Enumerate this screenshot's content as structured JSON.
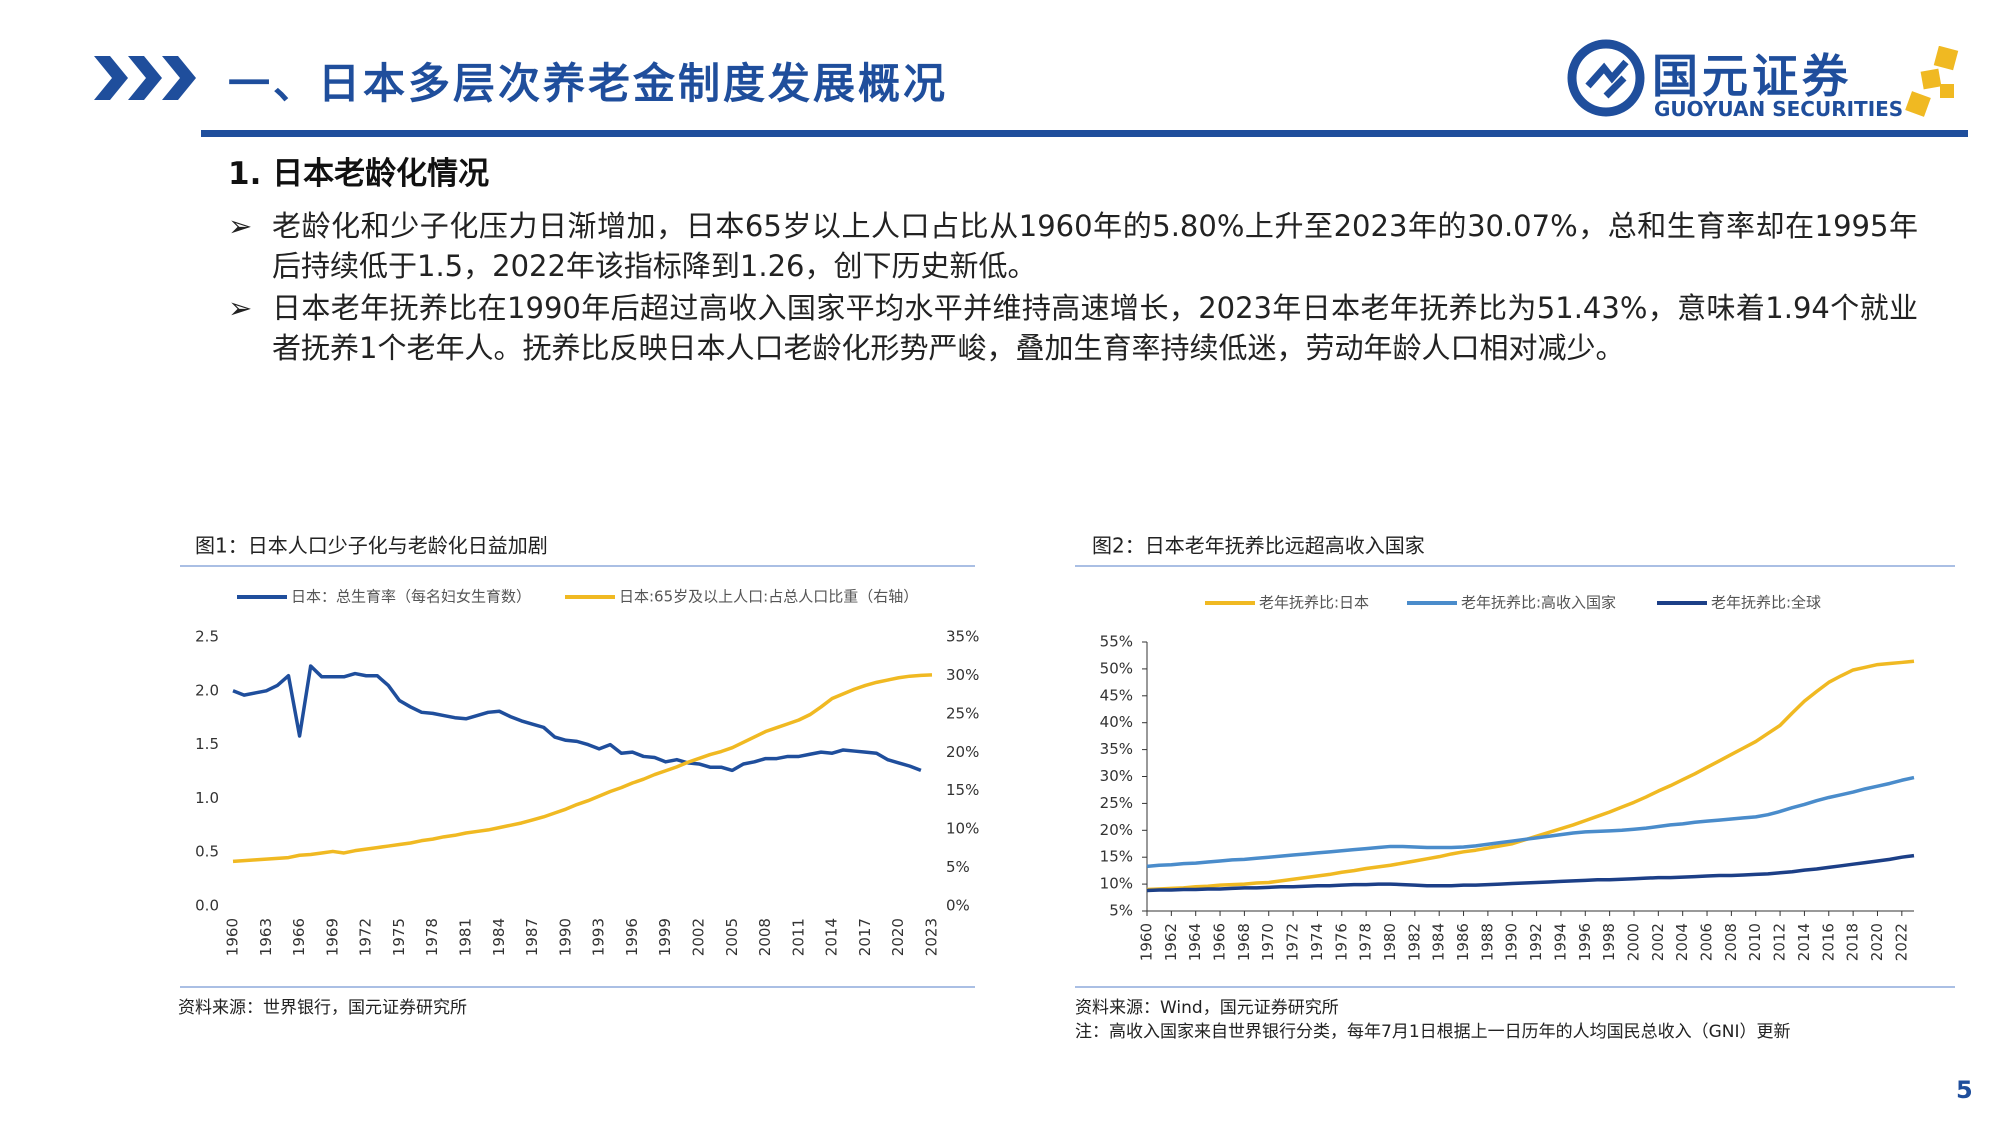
{
  "header": {
    "title": "一、日本多层次养老金制度发展概况",
    "logo_cn": "国元证券",
    "logo_en": "GUOYUAN SECURITIES"
  },
  "section_title": "1. 日本老龄化情况",
  "bullets": [
    "老龄化和少子化压力日渐增加，日本65岁以上人口占比从1960年的5.80%上升至2023年的30.07%，总和生育率却在1995年后持续低于1.5，2022年该指标降到1.26，创下历史新低。",
    "日本老年抚养比在1990年后超过高收入国家平均水平并维持高速增长，2023年日本老年抚养比为51.43%，意味着1.94个就业者抚养1个老年人。抚养比反映日本人口老龄化形势严峻，叠加生育率持续低迷，劳动年龄人口相对减少。"
  ],
  "chart_data": [
    {
      "type": "line",
      "title": "图1：日本人口少子化与老龄化日益加剧",
      "source": "资料来源：世界银行，国元证券研究所",
      "axis_lines": false,
      "x": [
        1960,
        1961,
        1962,
        1963,
        1964,
        1965,
        1966,
        1967,
        1968,
        1969,
        1970,
        1971,
        1972,
        1973,
        1974,
        1975,
        1976,
        1977,
        1978,
        1979,
        1980,
        1981,
        1982,
        1983,
        1984,
        1985,
        1986,
        1987,
        1988,
        1989,
        1990,
        1991,
        1992,
        1993,
        1994,
        1995,
        1996,
        1997,
        1998,
        1999,
        2000,
        2001,
        2002,
        2003,
        2004,
        2005,
        2006,
        2007,
        2008,
        2009,
        2010,
        2011,
        2012,
        2013,
        2014,
        2015,
        2016,
        2017,
        2018,
        2019,
        2020,
        2021,
        2022,
        2023
      ],
      "xlim": [
        1960,
        2023
      ],
      "xticks": [
        1960,
        1963,
        1966,
        1969,
        1972,
        1975,
        1978,
        1981,
        1984,
        1987,
        1990,
        1993,
        1996,
        1999,
        2002,
        2005,
        2008,
        2011,
        2014,
        2017,
        2020,
        2023
      ],
      "ylim": [
        0,
        2.5
      ],
      "yticks": [
        {
          "value": 0,
          "label": "0.0"
        },
        0.5,
        {
          "value": 1,
          "label": "1.0"
        },
        1.5,
        {
          "value": 2,
          "label": "2.0"
        },
        2.5
      ],
      "y2lim": [
        0,
        35
      ],
      "y2ticks": [
        {
          "value": 0,
          "label": "0%"
        },
        {
          "value": 5,
          "label": "5%"
        },
        {
          "value": 10,
          "label": "10%"
        },
        {
          "value": 15,
          "label": "15%"
        },
        {
          "value": 20,
          "label": "20%"
        },
        {
          "value": 25,
          "label": "25%"
        },
        {
          "value": 30,
          "label": "30%"
        },
        {
          "value": 35,
          "label": "35%"
        }
      ],
      "series": [
        {
          "name": "日本：总生育率（每名妇女生育数）",
          "color": "#1f4e9c",
          "values": [
            2.0,
            1.96,
            1.98,
            2.0,
            2.05,
            2.14,
            1.58,
            2.23,
            2.13,
            2.13,
            2.13,
            2.16,
            2.14,
            2.14,
            2.05,
            1.91,
            1.85,
            1.8,
            1.79,
            1.77,
            1.75,
            1.74,
            1.77,
            1.8,
            1.81,
            1.76,
            1.72,
            1.69,
            1.66,
            1.57,
            1.54,
            1.53,
            1.5,
            1.46,
            1.5,
            1.42,
            1.43,
            1.39,
            1.38,
            1.34,
            1.36,
            1.33,
            1.32,
            1.29,
            1.29,
            1.26,
            1.32,
            1.34,
            1.37,
            1.37,
            1.39,
            1.39,
            1.41,
            1.43,
            1.42,
            1.45,
            1.44,
            1.43,
            1.42,
            1.36,
            1.33,
            1.3,
            1.26,
            null
          ]
        },
        {
          "name": "日本:65岁及以上人口:占总人口比重（右轴）",
          "color": "#f0b922",
          "axis": "y2",
          "values": [
            5.8,
            5.9,
            6.0,
            6.1,
            6.2,
            6.3,
            6.6,
            6.7,
            6.9,
            7.1,
            6.9,
            7.2,
            7.4,
            7.6,
            7.8,
            8.0,
            8.2,
            8.5,
            8.7,
            9.0,
            9.2,
            9.5,
            9.7,
            9.9,
            10.2,
            10.5,
            10.8,
            11.2,
            11.6,
            12.1,
            12.6,
            13.2,
            13.7,
            14.3,
            14.9,
            15.4,
            16.0,
            16.5,
            17.1,
            17.6,
            18.1,
            18.7,
            19.2,
            19.7,
            20.1,
            20.6,
            21.3,
            22.0,
            22.7,
            23.2,
            23.7,
            24.2,
            24.9,
            25.9,
            27.0,
            27.6,
            28.2,
            28.7,
            29.1,
            29.4,
            29.7,
            29.9,
            30.0,
            30.07
          ]
        }
      ]
    },
    {
      "type": "line",
      "title": "图2：日本老年抚养比远超高收入国家",
      "source": "资料来源：Wind，国元证券研究所",
      "note": "注：高收入国家来自世界银行分类，每年7月1日根据上一日历年的人均国民总收入（GNI）更新",
      "axis_lines": true,
      "x": [
        1960,
        1961,
        1962,
        1963,
        1964,
        1965,
        1966,
        1967,
        1968,
        1969,
        1970,
        1971,
        1972,
        1973,
        1974,
        1975,
        1976,
        1977,
        1978,
        1979,
        1980,
        1981,
        1982,
        1983,
        1984,
        1985,
        1986,
        1987,
        1988,
        1989,
        1990,
        1991,
        1992,
        1993,
        1994,
        1995,
        1996,
        1997,
        1998,
        1999,
        2000,
        2001,
        2002,
        2003,
        2004,
        2005,
        2006,
        2007,
        2008,
        2009,
        2010,
        2011,
        2012,
        2013,
        2014,
        2015,
        2016,
        2017,
        2018,
        2019,
        2020,
        2021,
        2022,
        2023
      ],
      "xlim": [
        1960,
        2023
      ],
      "xticks": [
        1960,
        1962,
        1964,
        1966,
        1968,
        1970,
        1972,
        1974,
        1976,
        1978,
        1980,
        1982,
        1984,
        1986,
        1988,
        1990,
        1992,
        1994,
        1996,
        1998,
        2000,
        2002,
        2004,
        2006,
        2008,
        2010,
        2012,
        2014,
        2016,
        2018,
        2020,
        2022
      ],
      "ylim": [
        5,
        55
      ],
      "yticks": [
        {
          "value": 5,
          "label": "5%"
        },
        {
          "value": 10,
          "label": "10%"
        },
        {
          "value": 15,
          "label": "15%"
        },
        {
          "value": 20,
          "label": "20%"
        },
        {
          "value": 25,
          "label": "25%"
        },
        {
          "value": 30,
          "label": "30%"
        },
        {
          "value": 35,
          "label": "35%"
        },
        {
          "value": 40,
          "label": "40%"
        },
        {
          "value": 45,
          "label": "45%"
        },
        {
          "value": 50,
          "label": "50%"
        },
        {
          "value": 55,
          "label": "55%"
        }
      ],
      "series": [
        {
          "name": "老年抚养比:日本",
          "color": "#f0b922",
          "values": [
            9.0,
            9.1,
            9.2,
            9.3,
            9.5,
            9.6,
            9.8,
            9.9,
            10.0,
            10.2,
            10.3,
            10.6,
            10.9,
            11.2,
            11.5,
            11.8,
            12.2,
            12.5,
            12.9,
            13.2,
            13.5,
            13.9,
            14.3,
            14.7,
            15.1,
            15.6,
            16.0,
            16.3,
            16.7,
            17.1,
            17.5,
            18.2,
            18.9,
            19.6,
            20.3,
            21.0,
            21.8,
            22.6,
            23.4,
            24.3,
            25.2,
            26.2,
            27.3,
            28.3,
            29.4,
            30.5,
            31.7,
            32.9,
            34.1,
            35.3,
            36.5,
            38.0,
            39.5,
            41.8,
            44.0,
            45.8,
            47.5,
            48.7,
            49.8,
            50.3,
            50.8,
            51.0,
            51.2,
            51.43
          ]
        },
        {
          "name": "老年抚养比:高收入国家",
          "color": "#4a8ccb",
          "values": [
            13.3,
            13.5,
            13.6,
            13.8,
            13.9,
            14.1,
            14.3,
            14.5,
            14.6,
            14.8,
            15.0,
            15.2,
            15.4,
            15.6,
            15.8,
            16.0,
            16.2,
            16.4,
            16.6,
            16.8,
            17.0,
            17.0,
            16.9,
            16.8,
            16.8,
            16.8,
            16.9,
            17.1,
            17.4,
            17.7,
            18.0,
            18.3,
            18.6,
            18.9,
            19.2,
            19.5,
            19.7,
            19.8,
            19.9,
            20.0,
            20.2,
            20.4,
            20.7,
            21.0,
            21.2,
            21.5,
            21.7,
            21.9,
            22.1,
            22.3,
            22.5,
            22.9,
            23.5,
            24.2,
            24.8,
            25.5,
            26.1,
            26.6,
            27.1,
            27.7,
            28.2,
            28.7,
            29.3,
            29.8
          ]
        },
        {
          "name": "老年抚养比:全球",
          "color": "#1c3f87",
          "values": [
            8.8,
            8.9,
            8.9,
            9.0,
            9.0,
            9.1,
            9.1,
            9.2,
            9.3,
            9.3,
            9.4,
            9.5,
            9.5,
            9.6,
            9.7,
            9.7,
            9.8,
            9.9,
            9.9,
            10.0,
            10.0,
            9.9,
            9.8,
            9.7,
            9.7,
            9.7,
            9.8,
            9.8,
            9.9,
            10.0,
            10.1,
            10.2,
            10.3,
            10.4,
            10.5,
            10.6,
            10.7,
            10.8,
            10.8,
            10.9,
            11.0,
            11.1,
            11.2,
            11.2,
            11.3,
            11.4,
            11.5,
            11.6,
            11.6,
            11.7,
            11.8,
            11.9,
            12.1,
            12.3,
            12.6,
            12.8,
            13.1,
            13.4,
            13.7,
            14.0,
            14.3,
            14.6,
            15.0,
            15.3
          ]
        }
      ]
    }
  ],
  "page_number": "5"
}
